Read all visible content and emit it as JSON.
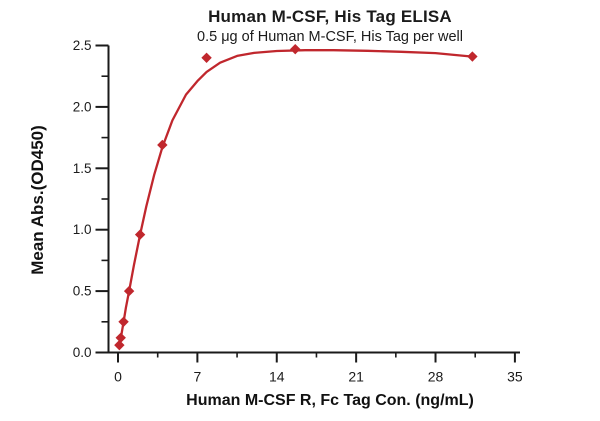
{
  "chart_data": {
    "type": "scatter",
    "title": "Human M-CSF, His Tag ELISA",
    "subtitle": "0.5 μg of Human M-CSF, His Tag per well",
    "xlabel": "Human M-CSF R, Fc Tag Con. (ng/mL)",
    "ylabel": "Mean Abs.(OD450)",
    "xlim": [
      0,
      35
    ],
    "ylim": [
      0.0,
      2.5
    ],
    "x_ticks": [
      0,
      7,
      14,
      21,
      28,
      35
    ],
    "y_ticks": [
      0.0,
      0.5,
      1.0,
      1.5,
      2.0,
      2.5
    ],
    "x_minor_step": 3.5,
    "y_minor_step": 0.25,
    "grid": false,
    "legend": "none",
    "marker": "diamond",
    "points": [
      [
        0.12,
        0.06
      ],
      [
        0.24,
        0.12
      ],
      [
        0.49,
        0.25
      ],
      [
        0.98,
        0.5
      ],
      [
        1.95,
        0.96
      ],
      [
        3.91,
        1.69
      ],
      [
        7.81,
        2.4
      ],
      [
        15.63,
        2.47
      ],
      [
        31.25,
        2.41
      ]
    ],
    "fit_curve": [
      [
        0.12,
        0.06
      ],
      [
        0.3,
        0.145
      ],
      [
        0.49,
        0.25
      ],
      [
        0.7,
        0.365
      ],
      [
        0.98,
        0.5
      ],
      [
        1.4,
        0.71
      ],
      [
        1.95,
        0.96
      ],
      [
        2.5,
        1.19
      ],
      [
        3.2,
        1.45
      ],
      [
        3.91,
        1.67
      ],
      [
        4.8,
        1.89
      ],
      [
        6.0,
        2.1
      ],
      [
        7.0,
        2.21
      ],
      [
        7.81,
        2.285
      ],
      [
        9.0,
        2.36
      ],
      [
        10.5,
        2.415
      ],
      [
        12.0,
        2.44
      ],
      [
        14.0,
        2.455
      ],
      [
        16.5,
        2.462
      ],
      [
        19.0,
        2.462
      ],
      [
        22.0,
        2.457
      ],
      [
        25.0,
        2.449
      ],
      [
        28.0,
        2.438
      ],
      [
        31.25,
        2.41
      ]
    ],
    "colors": {
      "series": "#c0272d",
      "axis": "#1a1a1a",
      "tick_text": "#1b1b1b",
      "background": "#ffffff"
    }
  }
}
